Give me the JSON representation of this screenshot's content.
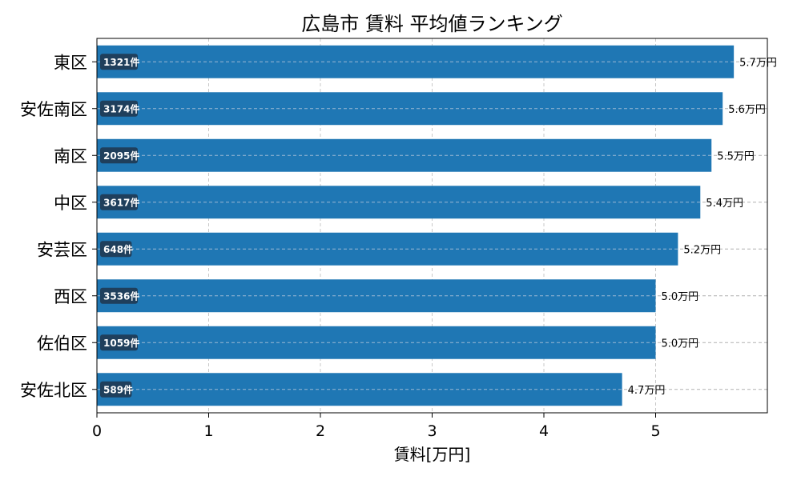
{
  "chart_data": {
    "type": "bar",
    "orientation": "horizontal",
    "title": "広島市 賃料 平均値ランキング",
    "xlabel": "賃料[万円]",
    "ylabel": "",
    "xlim": [
      0,
      6
    ],
    "xticks": [
      0,
      1,
      2,
      3,
      4,
      5
    ],
    "grid": true,
    "bar_color": "#1f77b4",
    "count_badge_color": "#1f3f5c",
    "value_suffix": "万円",
    "count_suffix": "件",
    "categories": [
      "東区",
      "安佐南区",
      "南区",
      "中区",
      "安芸区",
      "西区",
      "佐伯区",
      "安佐北区"
    ],
    "values": [
      5.7,
      5.6,
      5.5,
      5.4,
      5.2,
      5.0,
      5.0,
      4.7
    ],
    "counts": [
      1321,
      3174,
      2095,
      3617,
      648,
      3536,
      1059,
      589
    ]
  }
}
